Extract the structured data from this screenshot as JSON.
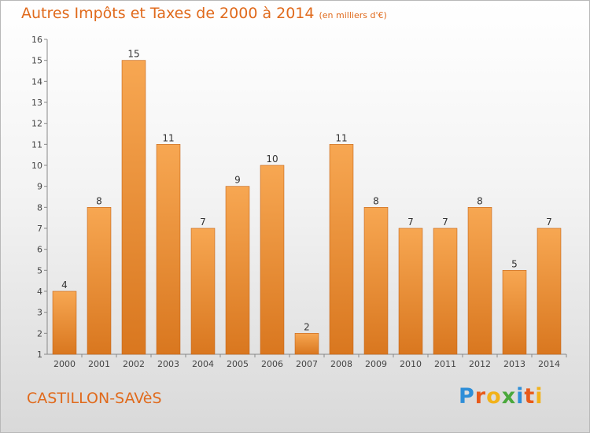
{
  "header": {
    "title": "Autres Impôts et Taxes de 2000 à 2014",
    "subtitle": "(en milliers d'€)"
  },
  "footer": {
    "place": "CASTILLON-SAVèS",
    "brand_letters": [
      {
        "char": "P",
        "color": "#2e8ed8"
      },
      {
        "char": "r",
        "color": "#e85a1a"
      },
      {
        "char": "o",
        "color": "#f2b21a"
      },
      {
        "char": "x",
        "color": "#4aa83c"
      },
      {
        "char": "i",
        "color": "#2e8ed8"
      },
      {
        "char": "t",
        "color": "#e85a1a"
      },
      {
        "char": "i",
        "color": "#f2b21a"
      }
    ]
  },
  "colors": {
    "accent": "#e06a1c",
    "bar_top": "#f7a752",
    "bar_bottom": "#d9771f",
    "bar_edge": "#c46418"
  },
  "chart_data": {
    "type": "bar",
    "title": "Autres Impôts et Taxes de 2000 à 2014",
    "subtitle": "(en milliers d'€)",
    "categories": [
      "2000",
      "2001",
      "2002",
      "2003",
      "2004",
      "2005",
      "2006",
      "2007",
      "2008",
      "2009",
      "2010",
      "2011",
      "2012",
      "2013",
      "2014"
    ],
    "values": [
      4,
      8,
      15,
      11,
      7,
      9,
      10,
      2,
      11,
      8,
      7,
      7,
      8,
      5,
      7
    ],
    "ylim": [
      1,
      16
    ],
    "yticks": [
      1,
      2,
      3,
      4,
      5,
      6,
      7,
      8,
      9,
      10,
      11,
      12,
      13,
      14,
      15,
      16
    ],
    "grid": false,
    "data_labels": true
  }
}
